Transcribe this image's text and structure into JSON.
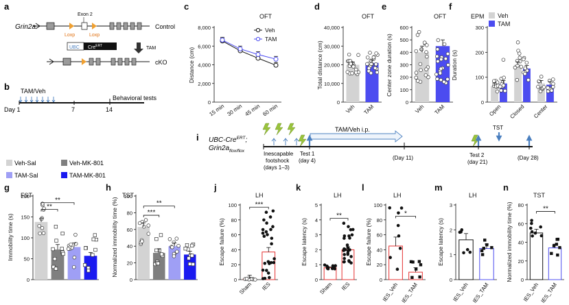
{
  "figure": {
    "palette": {
      "veh_sal": "#d3d3d3",
      "veh_mk801": "#7f7f7f",
      "tam_sal": "#9f9ff5",
      "tam_mk801": "#1a1af0",
      "tam": "#4c4cf0",
      "veh": "#d3d3d3",
      "red": "#e53030",
      "arrow_blue": "#4a7fbf",
      "lightning": "#9ac43c",
      "black": "#111111"
    },
    "panel_a": {
      "letter": "a",
      "gene": "Grin2a",
      "exon": "Exon 2",
      "loxp1": "Loxp",
      "loxp2": "Loxp",
      "control": "Control",
      "ubc": "UBC",
      "cre": "Cre",
      "cre_sup": "ERT",
      "tam": "TAM",
      "cko": "cKO"
    },
    "panel_b": {
      "letter": "b",
      "treatment": "TAM/Veh",
      "day_label": "Day 1",
      "tick7": "7",
      "tick14": "14",
      "tests": "Behavioral tests"
    },
    "panel_i": {
      "letter": "i",
      "line1_main": "UBC-Cre",
      "line1_sup": "ERT",
      "line1_end": ";",
      "line2_main": "Grin2a",
      "line2_sup": "flox/flox",
      "treatment": "TAM/Veh i.p.",
      "ies1": "Inescapable",
      "ies2": "footshock",
      "ies3": "(days 1–3)",
      "test1": "Test 1",
      "test1_day": "(day 4)",
      "day11": "(Day 11)",
      "test2": "Test 2",
      "test2_day": "(day 21)",
      "tst": "TST",
      "day28": "(Day 28)"
    },
    "legend": {
      "items": [
        {
          "label": "Veh-Sal",
          "color": "#d3d3d3"
        },
        {
          "label": "Veh-MK-801",
          "color": "#7f7f7f"
        },
        {
          "label": "TAM-Sal",
          "color": "#9f9ff5"
        },
        {
          "label": "TAM-MK-801",
          "color": "#1a1af0"
        }
      ]
    },
    "panels": {
      "c": {
        "letter": "c",
        "title": "OFT"
      },
      "d": {
        "letter": "d",
        "title": "OFT"
      },
      "e": {
        "letter": "e",
        "title": "OFT"
      },
      "f": {
        "letter": "f",
        "title": "EPM"
      },
      "g": {
        "letter": "g",
        "title": "FST"
      },
      "h": {
        "letter": "h",
        "title": "TST"
      },
      "j": {
        "letter": "j",
        "title": "LH"
      },
      "k": {
        "letter": "k",
        "title": "LH"
      },
      "l": {
        "letter": "l",
        "title": "LH"
      },
      "m": {
        "letter": "m",
        "title": "LH"
      },
      "n": {
        "letter": "n",
        "title": "TST"
      }
    }
  },
  "chart_data": [
    {
      "id": "c",
      "type": "line",
      "title": "OFT",
      "xlabel": "",
      "ylabel": "Distance (cm)",
      "categories": [
        "15 min",
        "30 min",
        "45 min",
        "60 min"
      ],
      "yticks": [
        "0",
        "2,000",
        "4,000",
        "6,000",
        "8,000"
      ],
      "ylim": [
        0,
        8000
      ],
      "series": [
        {
          "name": "Veh",
          "values": [
            6550,
            5500,
            4700,
            3950
          ],
          "marker": "open"
        },
        {
          "name": "TAM",
          "values": [
            6650,
            5700,
            5100,
            4600
          ],
          "marker": "open-blue"
        }
      ]
    },
    {
      "id": "d",
      "type": "bar",
      "title": "OFT",
      "xlabel": "",
      "ylabel": "Total distance (cm)",
      "categories": [
        "Veh",
        "TAM"
      ],
      "values": [
        20000,
        21000
      ],
      "yticks": [
        "0",
        "10,000",
        "20,000",
        "30,000",
        "40,000"
      ],
      "ylim": [
        0,
        40000
      ]
    },
    {
      "id": "e",
      "type": "bar",
      "title": "OFT",
      "xlabel": "",
      "ylabel": "Center zone duration (s)",
      "categories": [
        "Veh",
        "TAM"
      ],
      "values": [
        400,
        450
      ],
      "yticks": [
        "0",
        "100",
        "200",
        "300",
        "400",
        "500",
        "600"
      ],
      "ylim": [
        0,
        600
      ]
    },
    {
      "id": "f",
      "type": "bar",
      "title": "EPM",
      "xlabel": "",
      "ylabel": "Duration (s)",
      "categories": [
        "Open",
        "Closed",
        "Center"
      ],
      "legend": [
        "Veh",
        "TAM"
      ],
      "series": [
        {
          "name": "Veh",
          "values": [
            65,
            150,
            75
          ]
        },
        {
          "name": "TAM",
          "values": [
            75,
            135,
            70
          ]
        }
      ],
      "yticks": [
        "0",
        "100",
        "200",
        "300"
      ],
      "ylim": [
        0,
        300
      ]
    },
    {
      "id": "g",
      "type": "bar",
      "title": "FST",
      "xlabel": "",
      "ylabel": "Immobility time (s)",
      "categories": [
        "Veh-Sal",
        "Veh-MK-801",
        "TAM-Sal",
        "TAM-MK-801"
      ],
      "values": [
        138,
        72,
        78,
        57
      ],
      "yticks": [
        "0",
        "50",
        "100",
        "150",
        "200"
      ],
      "ylim": [
        0,
        200
      ],
      "significance": [
        "**",
        "**"
      ]
    },
    {
      "id": "h",
      "type": "bar",
      "title": "TST",
      "xlabel": "",
      "ylabel": "Normalized immobility time (%)",
      "categories": [
        "Veh-Sal",
        "Veh-MK-801",
        "TAM-Sal",
        "TAM-MK-801"
      ],
      "values": [
        63,
        32,
        40,
        30
      ],
      "yticks": [
        "0",
        "20",
        "40",
        "60",
        "80",
        "100"
      ],
      "ylim": [
        0,
        100
      ],
      "significance": [
        "***",
        "**"
      ]
    },
    {
      "id": "j",
      "type": "bar",
      "title": "LH",
      "xlabel": "",
      "ylabel": "Escape failure (%)",
      "categories": [
        "Sham",
        "IES"
      ],
      "values": [
        1,
        37
      ],
      "yticks": [
        "0",
        "20",
        "40",
        "60",
        "80",
        "100"
      ],
      "ylim": [
        0,
        100
      ],
      "significance": [
        "***"
      ]
    },
    {
      "id": "k",
      "type": "bar",
      "title": "LH",
      "xlabel": "",
      "ylabel": "Escape latency (s)",
      "categories": [
        "Sham",
        "IES"
      ],
      "values": [
        0.8,
        2.0
      ],
      "yticks": [
        "0",
        "1",
        "2",
        "3",
        "4",
        "5"
      ],
      "ylim": [
        0,
        5
      ],
      "significance": [
        "**"
      ]
    },
    {
      "id": "l",
      "type": "bar",
      "title": "LH",
      "xlabel": "",
      "ylabel": "Escape failure (%)",
      "categories": [
        "IES_Veh",
        "IES_TAM"
      ],
      "values": [
        45,
        10
      ],
      "yticks": [
        "0",
        "20",
        "40",
        "60",
        "80",
        "100"
      ],
      "ylim": [
        0,
        100
      ],
      "significance": [
        "*"
      ]
    },
    {
      "id": "m",
      "type": "bar",
      "title": "LH",
      "xlabel": "",
      "ylabel": "Escape latency (s)",
      "categories": [
        "IES_Veh",
        "IES_TAM"
      ],
      "values": [
        1.6,
        1.25
      ],
      "yticks": [
        "0",
        "1",
        "2",
        "3"
      ],
      "ylim": [
        0,
        3
      ]
    },
    {
      "id": "n",
      "type": "bar",
      "title": "TST",
      "xlabel": "",
      "ylabel": "Normalized immobility time (%)",
      "categories": [
        "IES_Veh",
        "IES_TAM"
      ],
      "values": [
        50,
        34
      ],
      "yticks": [
        "0",
        "20",
        "40",
        "60",
        "80"
      ],
      "ylim": [
        0,
        80
      ],
      "significance": [
        "**"
      ]
    }
  ]
}
